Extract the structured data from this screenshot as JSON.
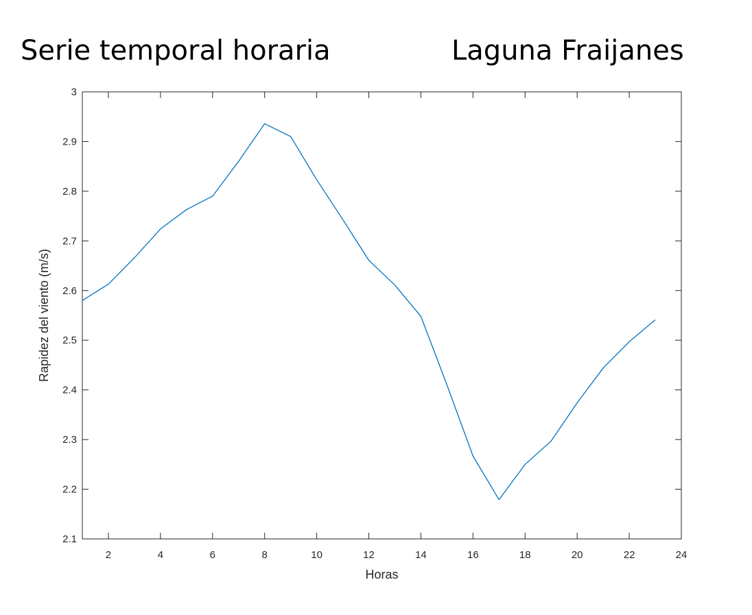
{
  "titles": {
    "left": "Serie temporal horaria",
    "right": "Laguna Fraijanes"
  },
  "chart_data": {
    "type": "line",
    "xlabel": "Horas",
    "ylabel": "Rapidez del viento (m/s)",
    "xlim": [
      1,
      24
    ],
    "ylim": [
      2.1,
      3.0
    ],
    "xticks": [
      2,
      4,
      6,
      8,
      10,
      12,
      14,
      16,
      18,
      20,
      22,
      24
    ],
    "yticks": [
      2.1,
      2.2,
      2.3,
      2.4,
      2.5,
      2.6,
      2.7,
      2.8,
      2.9,
      3.0
    ],
    "ytick_labels": [
      "2.1",
      "2.2",
      "2.3",
      "2.4",
      "2.5",
      "2.6",
      "2.7",
      "2.8",
      "2.9",
      "3"
    ],
    "grid": false,
    "series": [
      {
        "color": "#0072BD",
        "x": [
          1,
          2,
          3,
          4,
          5,
          6,
          7,
          8,
          9,
          10,
          11,
          12,
          13,
          14,
          15,
          16,
          17,
          18,
          19,
          20,
          21,
          22,
          23
        ],
        "values": [
          2.58,
          2.613,
          2.666,
          2.724,
          2.763,
          2.79,
          2.86,
          2.936,
          2.91,
          2.823,
          2.743,
          2.661,
          2.611,
          2.548,
          2.41,
          2.267,
          2.179,
          2.25,
          2.297,
          2.374,
          2.444,
          2.497,
          2.541
        ]
      }
    ]
  }
}
